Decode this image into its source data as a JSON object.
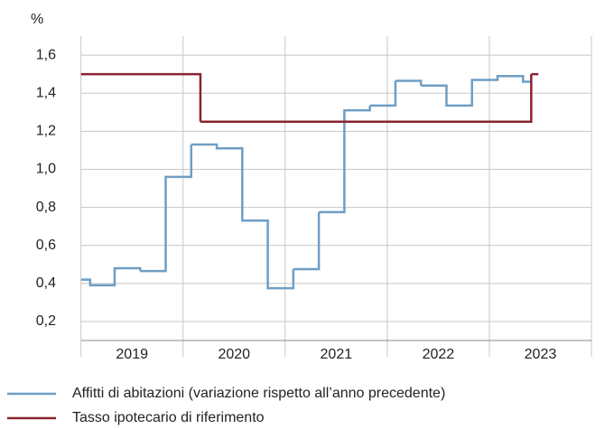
{
  "chart_data": {
    "type": "step-line",
    "y_unit": "%",
    "xlim": [
      2018.95,
      2024.0
    ],
    "xgrid": [
      2019,
      2020,
      2021,
      2022,
      2023,
      2024
    ],
    "xticks": [
      {
        "value": 2019.5,
        "label": "2019"
      },
      {
        "value": 2020.5,
        "label": "2020"
      },
      {
        "value": 2021.5,
        "label": "2021"
      },
      {
        "value": 2022.5,
        "label": "2022"
      },
      {
        "value": 2023.5,
        "label": "2023"
      }
    ],
    "ylim": [
      0.1,
      1.7
    ],
    "yticks": [
      {
        "value": 0.2,
        "label": "0,2"
      },
      {
        "value": 0.4,
        "label": "0,4"
      },
      {
        "value": 0.6,
        "label": "0,6"
      },
      {
        "value": 0.8,
        "label": "0,8"
      },
      {
        "value": 1.0,
        "label": "1,0"
      },
      {
        "value": 1.2,
        "label": "1,2"
      },
      {
        "value": 1.4,
        "label": "1,4"
      },
      {
        "value": 1.6,
        "label": "1,6"
      }
    ],
    "grid": true,
    "series": [
      {
        "name": "Affitti di abitazioni (variazione rispetto all’anno precedente)",
        "color": "#6f9ec4",
        "x": [
          2019.0,
          2019.09,
          2019.33,
          2019.58,
          2019.83,
          2020.08,
          2020.33,
          2020.58,
          2020.83,
          2021.08,
          2021.33,
          2021.58,
          2021.83,
          2022.08,
          2022.33,
          2022.58,
          2022.83,
          2023.08,
          2023.33
        ],
        "values": [
          0.42,
          0.39,
          0.48,
          0.465,
          0.96,
          1.13,
          1.11,
          0.73,
          0.375,
          0.475,
          0.775,
          1.31,
          1.335,
          1.465,
          1.44,
          1.335,
          1.47,
          1.49,
          1.46
        ],
        "x_end": 2023.41
      },
      {
        "name": "Tasso ipotecario di riferimento",
        "color": "#8b2331",
        "x": [
          2019.0,
          2020.17,
          2023.41
        ],
        "values": [
          1.5,
          1.25,
          1.5
        ],
        "x_end": 2023.48
      }
    ]
  }
}
